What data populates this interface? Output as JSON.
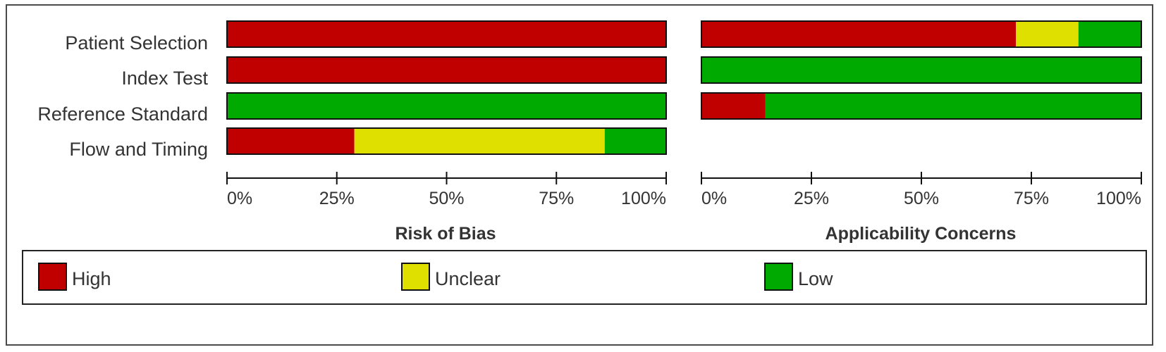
{
  "chart_data": [
    {
      "type": "bar",
      "orientation": "horizontal",
      "stacked": "percent",
      "title": "Risk of Bias",
      "categories": [
        "Patient Selection",
        "Index Test",
        "Reference Standard",
        "Flow and Timing"
      ],
      "series": [
        {
          "name": "High",
          "values": [
            100,
            100,
            0,
            29
          ]
        },
        {
          "name": "Unclear",
          "values": [
            0,
            0,
            0,
            57
          ]
        },
        {
          "name": "Low",
          "values": [
            0,
            0,
            100,
            14
          ]
        }
      ],
      "xlim": [
        0,
        100
      ],
      "xticks": [
        "0%",
        "25%",
        "50%",
        "75%",
        "100%"
      ]
    },
    {
      "type": "bar",
      "orientation": "horizontal",
      "stacked": "percent",
      "title": "Applicability Concerns",
      "categories": [
        "Patient Selection",
        "Index Test",
        "Reference Standard"
      ],
      "series": [
        {
          "name": "High",
          "values": [
            71.5,
            0,
            14.5
          ]
        },
        {
          "name": "Unclear",
          "values": [
            14.2,
            0,
            0
          ]
        },
        {
          "name": "Low",
          "values": [
            14.3,
            100,
            85.5
          ]
        }
      ],
      "xlim": [
        0,
        100
      ],
      "xticks": [
        "0%",
        "25%",
        "50%",
        "75%",
        "100%"
      ]
    }
  ],
  "legend": {
    "items": [
      {
        "label": "High",
        "color": "#c00000"
      },
      {
        "label": "Unclear",
        "color": "#e0e000"
      },
      {
        "label": "Low",
        "color": "#00aa00"
      }
    ],
    "placement": "bottom"
  },
  "colors": {
    "High": "#c00000",
    "Unclear": "#e0e000",
    "Low": "#00aa00"
  }
}
